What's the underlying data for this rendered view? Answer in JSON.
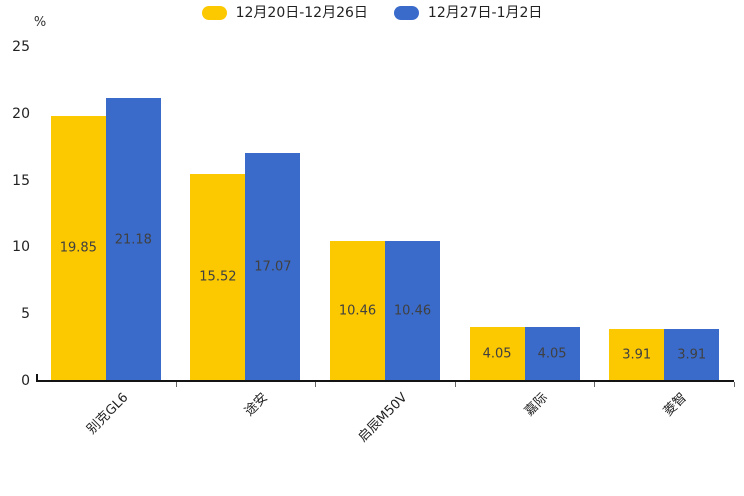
{
  "chart_data": {
    "type": "bar",
    "title": "",
    "categories": [
      "别克GL6",
      "途安",
      "启辰M50V",
      "嘉际",
      "菱智"
    ],
    "series": [
      {
        "name": "12月20日-12月26日",
        "color": "#FCC800",
        "values": [
          19.85,
          15.52,
          10.46,
          4.05,
          3.91
        ]
      },
      {
        "name": "12月27日-1月2日",
        "color": "#3A6BCB",
        "values": [
          21.18,
          17.07,
          10.46,
          4.05,
          3.91
        ]
      }
    ],
    "ylabel": "%",
    "yticks": [
      0,
      5,
      10,
      15,
      20,
      25
    ],
    "ylim": [
      0,
      25
    ],
    "legend_position": "top",
    "grid": false,
    "value_label_position": "inside-center",
    "value_label_decimals": 2
  }
}
